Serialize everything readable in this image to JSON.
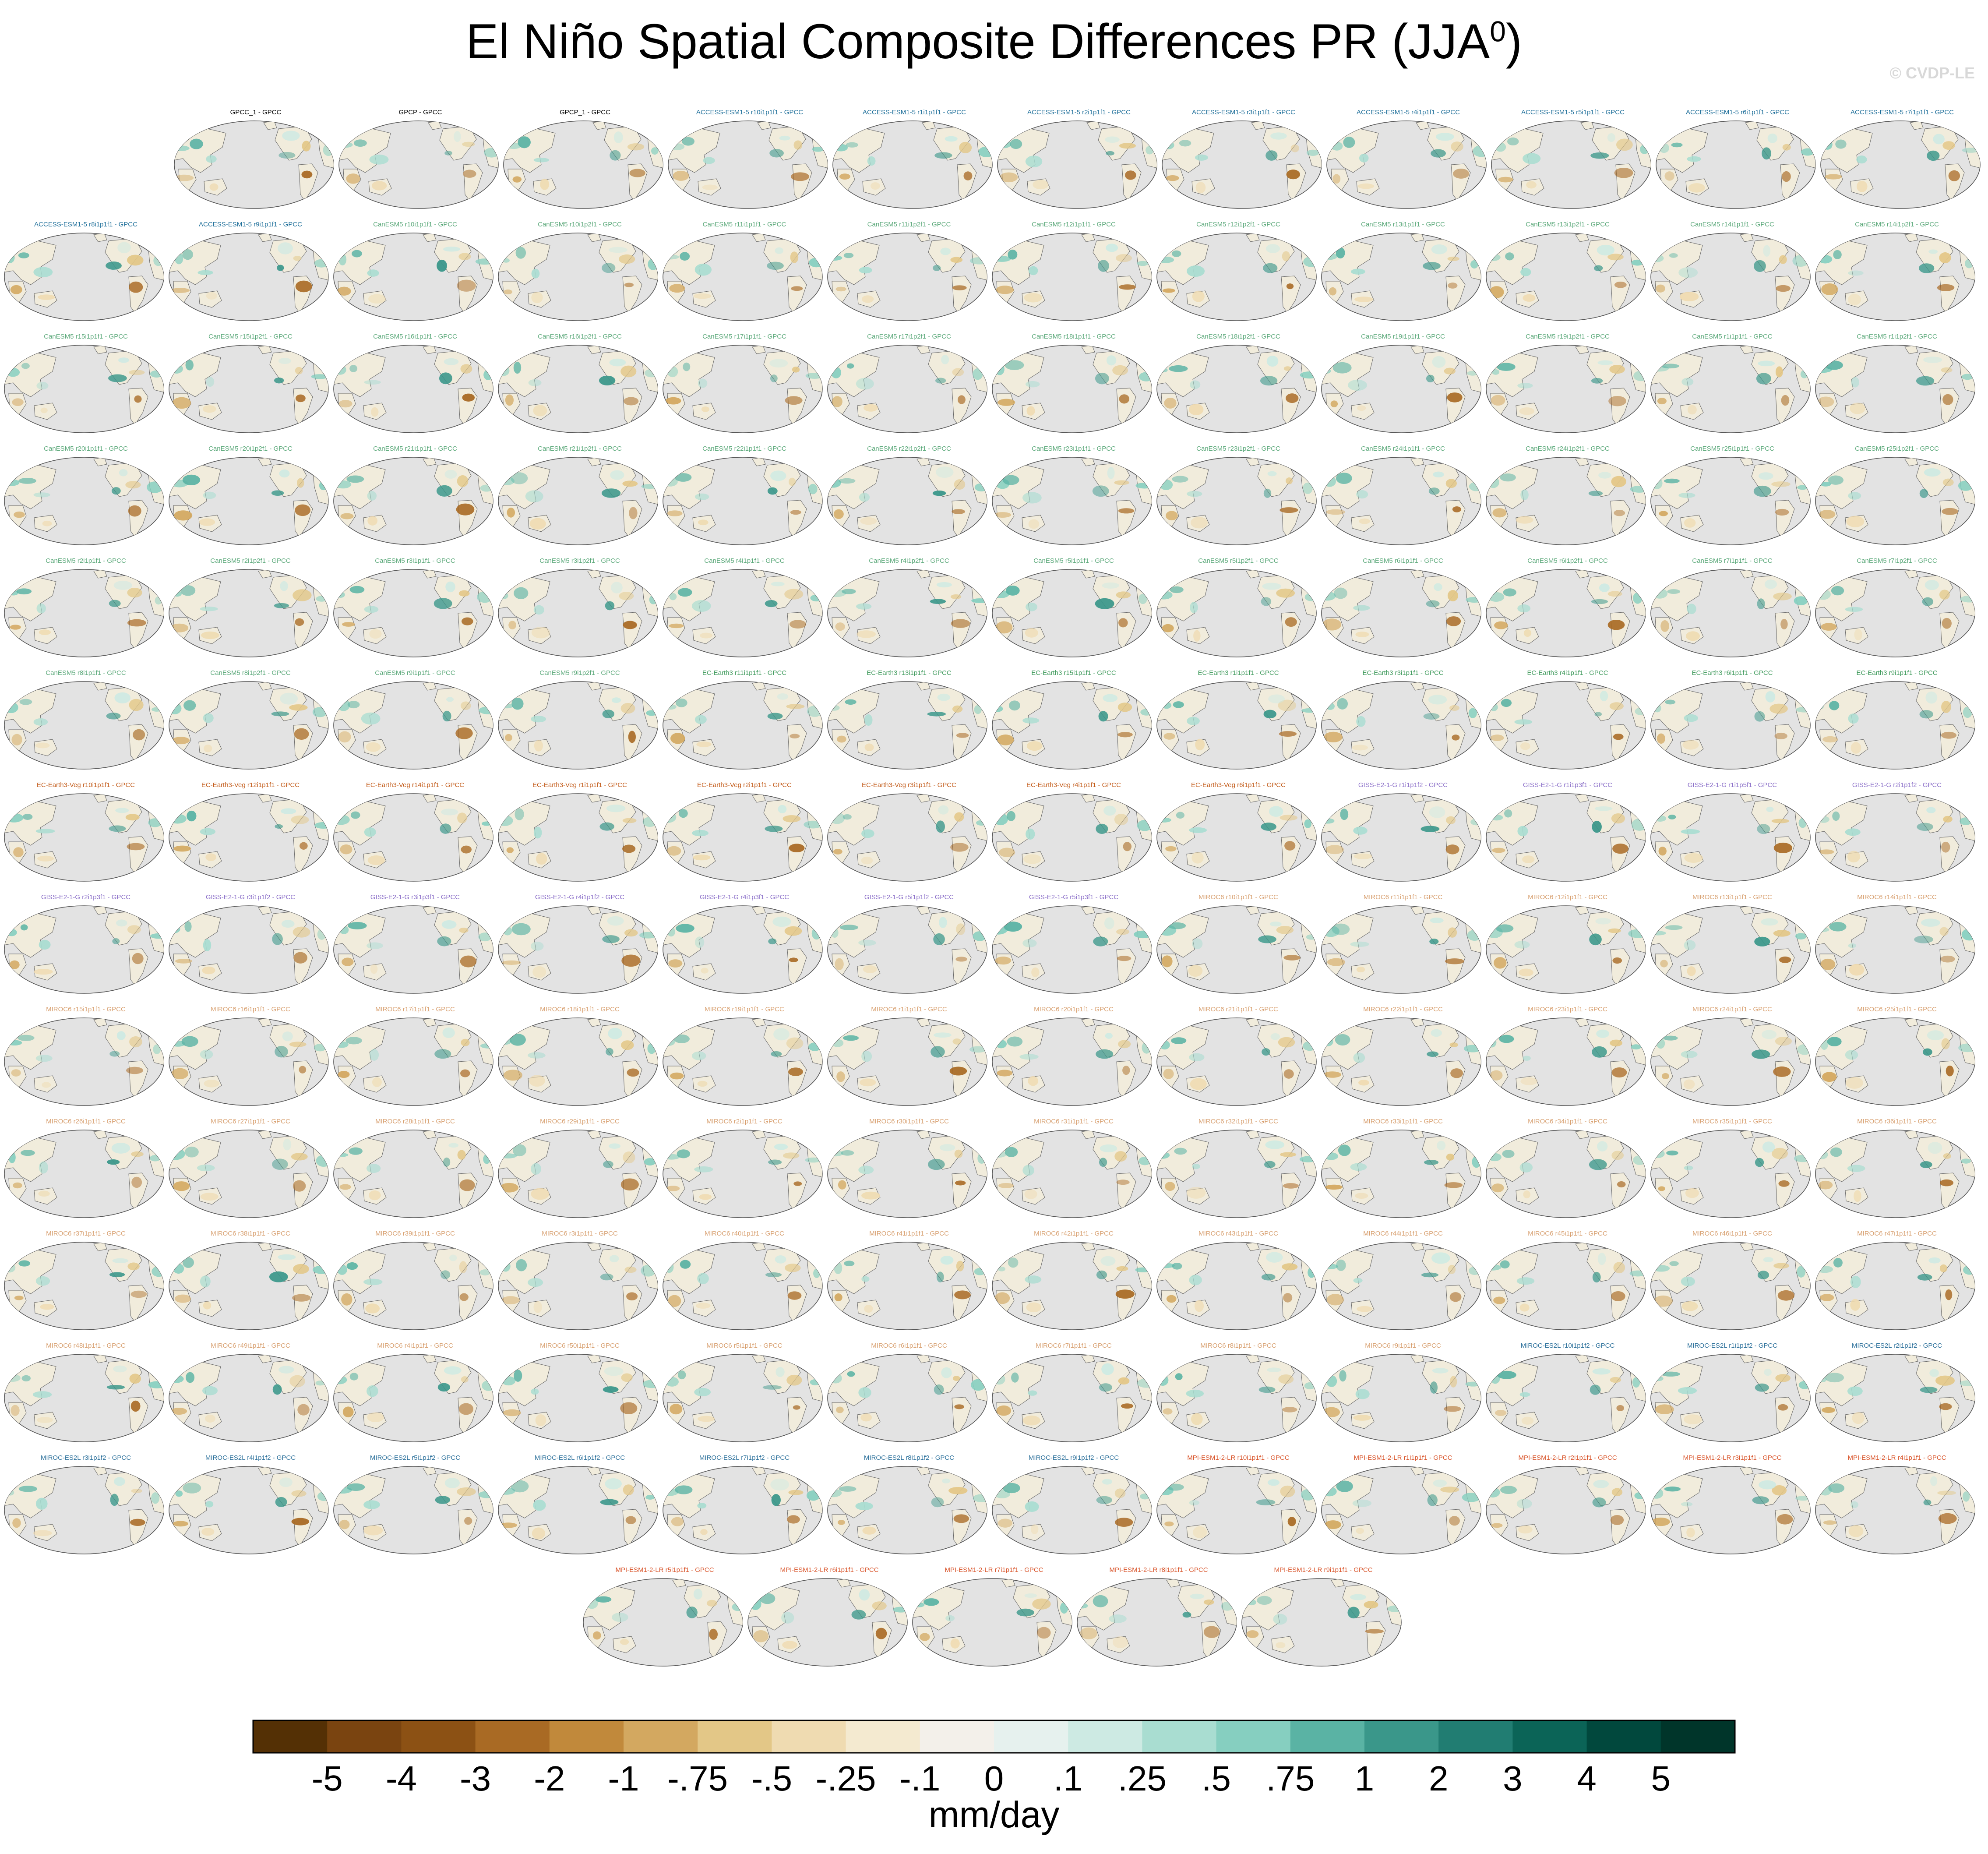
{
  "title": {
    "main": "El Niño Spatial Composite Differences PR (JJA",
    "superscript": "0",
    "close": ")"
  },
  "watermark": "© CVDP-LE",
  "panel_rows": [
    [
      "GPCC_1 - GPCC",
      "GPCP - GPCC",
      "GPCP_1 - GPCC",
      "ACCESS-ESM1-5 r10i1p1f1 - GPCC",
      "ACCESS-ESM1-5 r1i1p1f1 - GPCC",
      "ACCESS-ESM1-5 r2i1p1f1 - GPCC",
      "ACCESS-ESM1-5 r3i1p1f1 - GPCC",
      "ACCESS-ESM1-5 r4i1p1f1 - GPCC",
      "ACCESS-ESM1-5 r5i1p1f1 - GPCC",
      "ACCESS-ESM1-5 r6i1p1f1 - GPCC",
      "ACCESS-ESM1-5 r7i1p1f1 - GPCC"
    ],
    [
      "ACCESS-ESM1-5 r8i1p1f1 - GPCC",
      "ACCESS-ESM1-5 r9i1p1f1 - GPCC",
      "CanESM5 r10i1p1f1 - GPCC",
      "CanESM5 r10i1p2f1 - GPCC",
      "CanESM5 r11i1p1f1 - GPCC",
      "CanESM5 r11i1p2f1 - GPCC",
      "CanESM5 r12i1p1f1 - GPCC",
      "CanESM5 r12i1p2f1 - GPCC",
      "CanESM5 r13i1p1f1 - GPCC",
      "CanESM5 r13i1p2f1 - GPCC",
      "CanESM5 r14i1p1f1 - GPCC",
      "CanESM5 r14i1p2f1 - GPCC"
    ],
    [
      "CanESM5 r15i1p1f1 - GPCC",
      "CanESM5 r15i1p2f1 - GPCC",
      "CanESM5 r16i1p1f1 - GPCC",
      "CanESM5 r16i1p2f1 - GPCC",
      "CanESM5 r17i1p1f1 - GPCC",
      "CanESM5 r17i1p2f1 - GPCC",
      "CanESM5 r18i1p1f1 - GPCC",
      "CanESM5 r18i1p2f1 - GPCC",
      "CanESM5 r19i1p1f1 - GPCC",
      "CanESM5 r19i1p2f1 - GPCC",
      "CanESM5 r1i1p1f1 - GPCC",
      "CanESM5 r1i1p2f1 - GPCC"
    ],
    [
      "CanESM5 r20i1p1f1 - GPCC",
      "CanESM5 r20i1p2f1 - GPCC",
      "CanESM5 r21i1p1f1 - GPCC",
      "CanESM5 r21i1p2f1 - GPCC",
      "CanESM5 r22i1p1f1 - GPCC",
      "CanESM5 r22i1p2f1 - GPCC",
      "CanESM5 r23i1p1f1 - GPCC",
      "CanESM5 r23i1p2f1 - GPCC",
      "CanESM5 r24i1p1f1 - GPCC",
      "CanESM5 r24i1p2f1 - GPCC",
      "CanESM5 r25i1p1f1 - GPCC",
      "CanESM5 r25i1p2f1 - GPCC"
    ],
    [
      "CanESM5 r2i1p1f1 - GPCC",
      "CanESM5 r2i1p2f1 - GPCC",
      "CanESM5 r3i1p1f1 - GPCC",
      "CanESM5 r3i1p2f1 - GPCC",
      "CanESM5 r4i1p1f1 - GPCC",
      "CanESM5 r4i1p2f1 - GPCC",
      "CanESM5 r5i1p1f1 - GPCC",
      "CanESM5 r5i1p2f1 - GPCC",
      "CanESM5 r6i1p1f1 - GPCC",
      "CanESM5 r6i1p2f1 - GPCC",
      "CanESM5 r7i1p1f1 - GPCC",
      "CanESM5 r7i1p2f1 - GPCC"
    ],
    [
      "CanESM5 r8i1p1f1 - GPCC",
      "CanESM5 r8i1p2f1 - GPCC",
      "CanESM5 r9i1p1f1 - GPCC",
      "CanESM5 r9i1p2f1 - GPCC",
      "EC-Earth3 r11i1p1f1 - GPCC",
      "EC-Earth3 r13i1p1f1 - GPCC",
      "EC-Earth3 r15i1p1f1 - GPCC",
      "EC-Earth3 r1i1p1f1 - GPCC",
      "EC-Earth3 r3i1p1f1 - GPCC",
      "EC-Earth3 r4i1p1f1 - GPCC",
      "EC-Earth3 r6i1p1f1 - GPCC",
      "EC-Earth3 r9i1p1f1 - GPCC"
    ],
    [
      "EC-Earth3-Veg r10i1p1f1 - GPCC",
      "EC-Earth3-Veg r12i1p1f1 - GPCC",
      "EC-Earth3-Veg r14i1p1f1 - GPCC",
      "EC-Earth3-Veg r1i1p1f1 - GPCC",
      "EC-Earth3-Veg r2i1p1f1 - GPCC",
      "EC-Earth3-Veg r3i1p1f1 - GPCC",
      "EC-Earth3-Veg r4i1p1f1 - GPCC",
      "EC-Earth3-Veg r6i1p1f1 - GPCC",
      "GISS-E2-1-G r1i1p1f2 - GPCC",
      "GISS-E2-1-G r1i1p3f1 - GPCC",
      "GISS-E2-1-G r1i1p5f1 - GPCC",
      "GISS-E2-1-G r2i1p1f2 - GPCC"
    ],
    [
      "GISS-E2-1-G r2i1p3f1 - GPCC",
      "GISS-E2-1-G r3i1p1f2 - GPCC",
      "GISS-E2-1-G r3i1p3f1 - GPCC",
      "GISS-E2-1-G r4i1p1f2 - GPCC",
      "GISS-E2-1-G r4i1p3f1 - GPCC",
      "GISS-E2-1-G r5i1p1f2 - GPCC",
      "GISS-E2-1-G r5i1p3f1 - GPCC",
      "MIROC6 r10i1p1f1 - GPCC",
      "MIROC6 r11i1p1f1 - GPCC",
      "MIROC6 r12i1p1f1 - GPCC",
      "MIROC6 r13i1p1f1 - GPCC",
      "MIROC6 r14i1p1f1 - GPCC"
    ],
    [
      "MIROC6 r15i1p1f1 - GPCC",
      "MIROC6 r16i1p1f1 - GPCC",
      "MIROC6 r17i1p1f1 - GPCC",
      "MIROC6 r18i1p1f1 - GPCC",
      "MIROC6 r19i1p1f1 - GPCC",
      "MIROC6 r1i1p1f1 - GPCC",
      "MIROC6 r20i1p1f1 - GPCC",
      "MIROC6 r21i1p1f1 - GPCC",
      "MIROC6 r22i1p1f1 - GPCC",
      "MIROC6 r23i1p1f1 - GPCC",
      "MIROC6 r24i1p1f1 - GPCC",
      "MIROC6 r25i1p1f1 - GPCC"
    ],
    [
      "MIROC6 r26i1p1f1 - GPCC",
      "MIROC6 r27i1p1f1 - GPCC",
      "MIROC6 r28i1p1f1 - GPCC",
      "MIROC6 r29i1p1f1 - GPCC",
      "MIROC6 r2i1p1f1 - GPCC",
      "MIROC6 r30i1p1f1 - GPCC",
      "MIROC6 r31i1p1f1 - GPCC",
      "MIROC6 r32i1p1f1 - GPCC",
      "MIROC6 r33i1p1f1 - GPCC",
      "MIROC6 r34i1p1f1 - GPCC",
      "MIROC6 r35i1p1f1 - GPCC",
      "MIROC6 r36i1p1f1 - GPCC"
    ],
    [
      "MIROC6 r37i1p1f1 - GPCC",
      "MIROC6 r38i1p1f1 - GPCC",
      "MIROC6 r39i1p1f1 - GPCC",
      "MIROC6 r3i1p1f1 - GPCC",
      "MIROC6 r40i1p1f1 - GPCC",
      "MIROC6 r41i1p1f1 - GPCC",
      "MIROC6 r42i1p1f1 - GPCC",
      "MIROC6 r43i1p1f1 - GPCC",
      "MIROC6 r44i1p1f1 - GPCC",
      "MIROC6 r45i1p1f1 - GPCC",
      "MIROC6 r46i1p1f1 - GPCC",
      "MIROC6 r47i1p1f1 - GPCC"
    ],
    [
      "MIROC6 r48i1p1f1 - GPCC",
      "MIROC6 r49i1p1f1 - GPCC",
      "MIROC6 r4i1p1f1 - GPCC",
      "MIROC6 r50i1p1f1 - GPCC",
      "MIROC6 r5i1p1f1 - GPCC",
      "MIROC6 r6i1p1f1 - GPCC",
      "MIROC6 r7i1p1f1 - GPCC",
      "MIROC6 r8i1p1f1 - GPCC",
      "MIROC6 r9i1p1f1 - GPCC",
      "MIROC-ES2L r10i1p1f2 - GPCC",
      "MIROC-ES2L r1i1p1f2 - GPCC",
      "MIROC-ES2L r2i1p1f2 - GPCC"
    ],
    [
      "MIROC-ES2L r3i1p1f2 - GPCC",
      "MIROC-ES2L r4i1p1f2 - GPCC",
      "MIROC-ES2L r5i1p1f2 - GPCC",
      "MIROC-ES2L r6i1p1f2 - GPCC",
      "MIROC-ES2L r7i1p1f2 - GPCC",
      "MIROC-ES2L r8i1p1f2 - GPCC",
      "MIROC-ES2L r9i1p1f2 - GPCC",
      "MPI-ESM1-2-LR r10i1p1f1 - GPCC",
      "MPI-ESM1-2-LR r1i1p1f1 - GPCC",
      "MPI-ESM1-2-LR r2i1p1f1 - GPCC",
      "MPI-ESM1-2-LR r3i1p1f1 - GPCC",
      "MPI-ESM1-2-LR r4i1p1f1 - GPCC"
    ],
    [
      "MPI-ESM1-2-LR r5i1p1f1 - GPCC",
      "MPI-ESM1-2-LR r6i1p1f1 - GPCC",
      "MPI-ESM1-2-LR r7i1p1f1 - GPCC",
      "MPI-ESM1-2-LR r8i1p1f1 - GPCC",
      "MPI-ESM1-2-LR r9i1p1f1 - GPCC"
    ]
  ],
  "model_colors": {
    "GPC": "#000000",
    "ACCESS": "#1e6f9a",
    "CanESM5": "#5aa879",
    "EC-Earth3-Veg": "#c25a18",
    "EC-Earth3": "#3f9a5c",
    "GISS": "#8a6ec8",
    "MIROC-ES2L": "#2a6f9a",
    "MIROC6": "#d8a070",
    "MPI": "#d9542a"
  },
  "colorbar": {
    "colors": [
      "#543005",
      "#7a4410",
      "#8c5114",
      "#a96a24",
      "#c1893b",
      "#d3a860",
      "#e3c787",
      "#efdbb1",
      "#f4ead0",
      "#f3f0ea",
      "#e6f1ee",
      "#cdeae3",
      "#a9ddd1",
      "#86cfc0",
      "#5ab3a4",
      "#3a978a",
      "#217d72",
      "#0b6457",
      "#01483d",
      "#00352a"
    ],
    "tick_labels": [
      "-5",
      "-4",
      "-3",
      "-2",
      "-1",
      "-.75",
      "-.5",
      "-.25",
      "-.1",
      "0",
      ".1",
      ".25",
      ".5",
      ".75",
      "1",
      "2",
      "3",
      "4",
      "5"
    ],
    "units": "mm/day"
  }
}
